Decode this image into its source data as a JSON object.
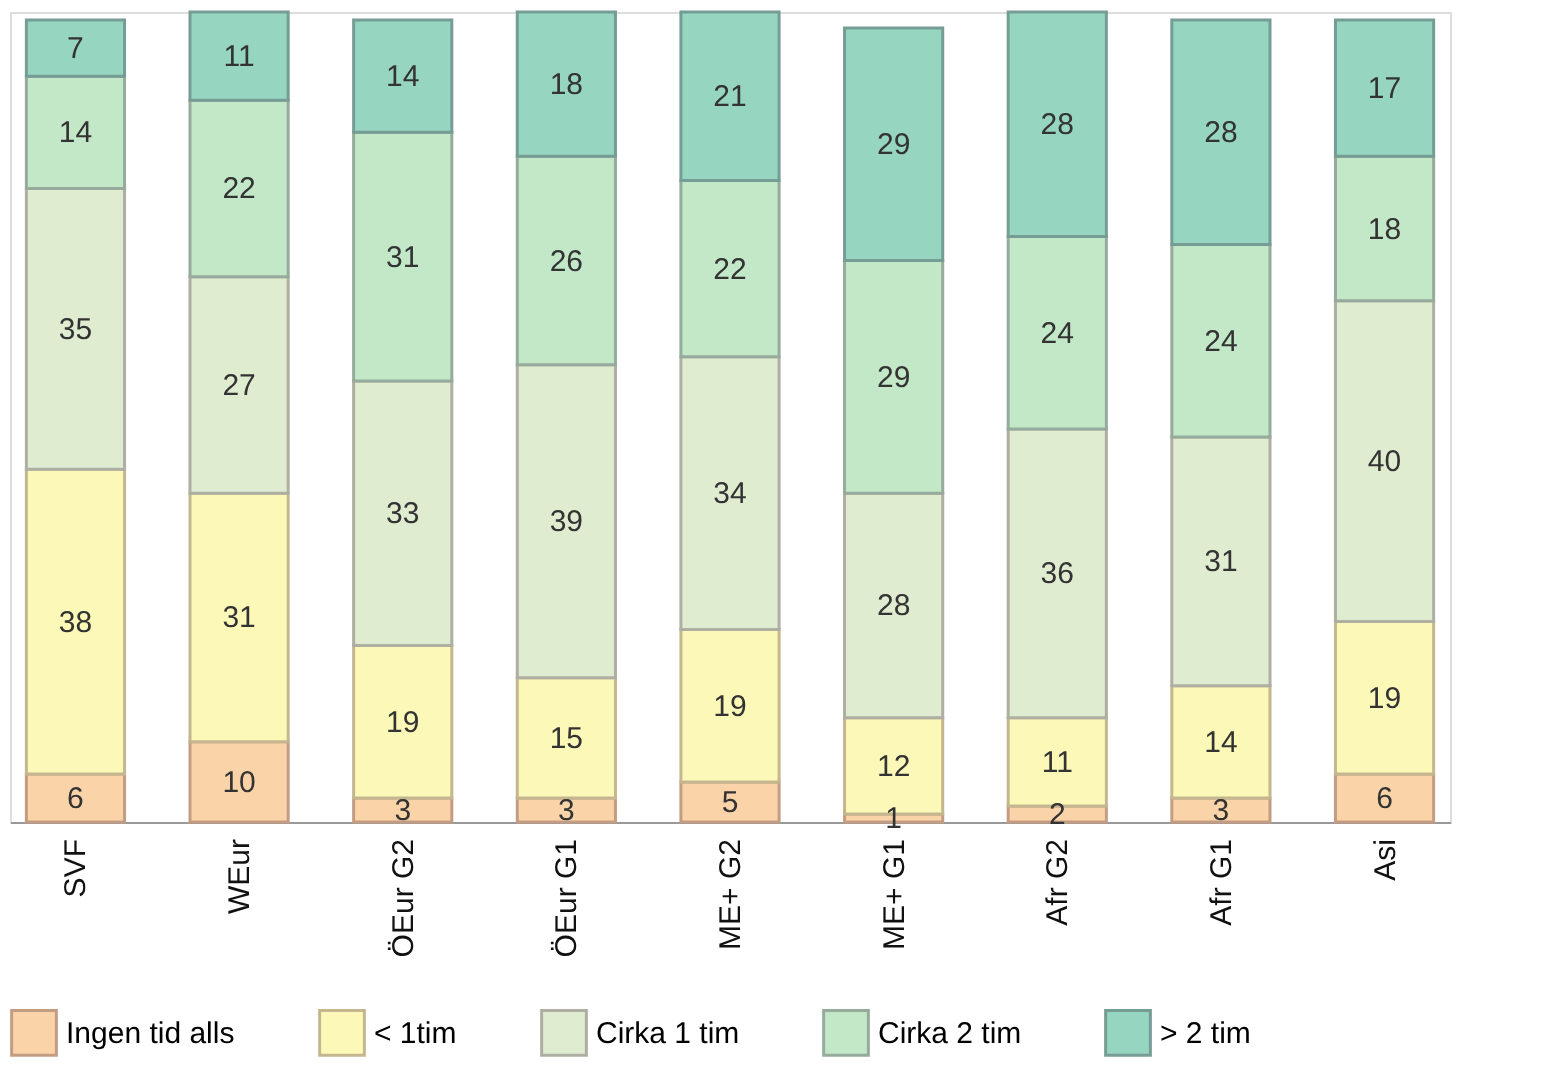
{
  "chart_data": {
    "type": "bar",
    "stacked": true,
    "data_labels": true,
    "legend": "bottom",
    "grid": false,
    "tick_labels": "x",
    "ylim": [
      0,
      101
    ],
    "categories": [
      "SVF",
      "WEur",
      "ÖEur G2",
      "ÖEur G1",
      "ME+ G2",
      "ME+ G1",
      "Afr G2",
      "Afr G1",
      "Asi"
    ],
    "series": [
      {
        "name": "Ingen tid alls",
        "color": "#fad4a8",
        "values": [
          6,
          10,
          3,
          3,
          5,
          1,
          2,
          3,
          6
        ]
      },
      {
        "name": "< 1tim",
        "color": "#fcf8b8",
        "values": [
          38,
          31,
          19,
          15,
          19,
          12,
          11,
          14,
          19
        ]
      },
      {
        "name": "Cirka 1 tim",
        "color": "#e0ecd0",
        "values": [
          35,
          27,
          33,
          39,
          34,
          28,
          36,
          31,
          40
        ]
      },
      {
        "name": "Cirka 2 tim",
        "color": "#c2e8c8",
        "values": [
          14,
          22,
          31,
          26,
          22,
          29,
          24,
          24,
          18
        ]
      },
      {
        "name": "> 2 tim",
        "color": "#96d5c0",
        "values": [
          7,
          11,
          14,
          18,
          21,
          29,
          28,
          28,
          17
        ]
      }
    ]
  }
}
